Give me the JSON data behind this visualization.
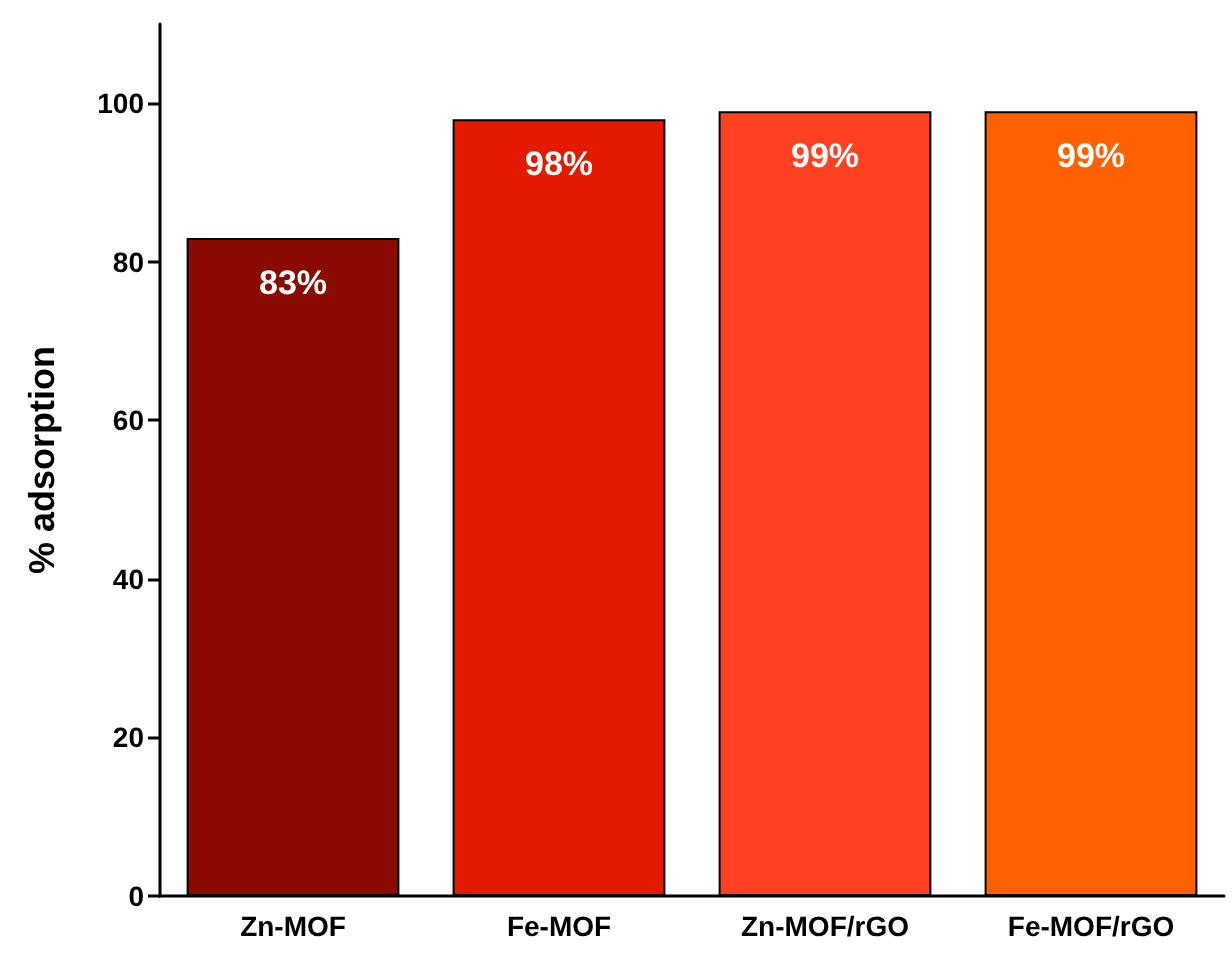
{
  "chart_data": {
    "type": "bar",
    "ylabel": "% adsorption",
    "categories": [
      "Zn-MOF",
      "Fe-MOF",
      "Zn-MOF/rGO",
      "Fe-MOF/rGO"
    ],
    "values": [
      83,
      98,
      99,
      99
    ],
    "colors": [
      "#8b0a00",
      "#e31a00",
      "#ff4122",
      "#ff6000"
    ],
    "value_labels": [
      "83%",
      "98%",
      "99%",
      "99%"
    ],
    "ylim": [
      0,
      110
    ],
    "yticks": [
      0,
      20,
      40,
      60,
      80,
      100
    ],
    "grid": false
  }
}
